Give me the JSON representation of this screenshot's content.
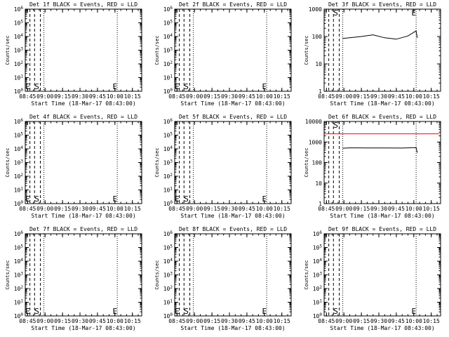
{
  "figure": {
    "background": "#ffffff",
    "axis_color": "#000000",
    "events_color": "#000000",
    "lld_color": "#ff0000"
  },
  "chart_data": [
    {
      "type": "line",
      "title": "Det 1f BLACK = Events, RED = LLD",
      "xlabel": "Start Time (18-Mar-17 08:43:00)",
      "ylabel": "Counts/sec",
      "scale": "log",
      "ytick_format": "exp",
      "ylim": [
        1,
        1000000
      ],
      "yticks": [
        1,
        10,
        100,
        1000,
        10000,
        100000,
        1000000
      ],
      "xticks": [
        "08:45",
        "09:00",
        "09:15",
        "09:30",
        "09:45",
        "10:00",
        "10:15"
      ],
      "markers": [
        {
          "label": "E",
          "x": "08:45"
        },
        {
          "label": "S",
          "x": "08:53"
        },
        {
          "label": "E",
          "x": "10:00"
        }
      ],
      "series": []
    },
    {
      "type": "line",
      "title": "Det 2f BLACK = Events, RED = LLD",
      "xlabel": "Start Time (18-Mar-17 08:43:00)",
      "ylabel": "Counts/sec",
      "scale": "log",
      "ytick_format": "exp",
      "ylim": [
        1,
        1000000
      ],
      "yticks": [
        1,
        10,
        100,
        1000,
        10000,
        100000,
        1000000
      ],
      "xticks": [
        "08:45",
        "09:00",
        "09:15",
        "09:30",
        "09:45",
        "10:00",
        "10:15"
      ],
      "markers": [
        {
          "label": "E",
          "x": "08:45"
        },
        {
          "label": "S",
          "x": "08:53"
        },
        {
          "label": "E",
          "x": "10:00"
        }
      ],
      "series": []
    },
    {
      "type": "line",
      "title": "Det 3f BLACK = Events, RED = LLD",
      "xlabel": "Start Time (18-Mar-17 08:43:00)",
      "ylabel": "Counts/sec",
      "scale": "log",
      "ytick_format": "plain",
      "ylim": [
        1,
        1000
      ],
      "yticks": [
        1,
        10,
        100,
        1000
      ],
      "xticks": [
        "08:45",
        "09:00",
        "09:15",
        "09:30",
        "09:45",
        "10:00",
        "10:15"
      ],
      "markers": [
        {
          "label": "S",
          "x": "08:53"
        },
        {
          "label": "E",
          "x": "10:00"
        }
      ],
      "series": [
        {
          "color": "events",
          "x": [
            "08:59",
            "09:05",
            "09:15",
            "09:25",
            "09:35",
            "09:45",
            "09:55",
            "10:02",
            "10:03"
          ],
          "y": [
            85,
            90,
            100,
            115,
            90,
            80,
            105,
            160,
            90
          ]
        }
      ]
    },
    {
      "type": "line",
      "title": "Det 4f BLACK = Events, RED = LLD",
      "xlabel": "Start Time (18-Mar-17 08:43:00)",
      "ylabel": "Counts/sec",
      "scale": "log",
      "ytick_format": "exp",
      "ylim": [
        1,
        1000000
      ],
      "yticks": [
        1,
        10,
        100,
        1000,
        10000,
        100000,
        1000000
      ],
      "xticks": [
        "08:45",
        "09:00",
        "09:15",
        "09:30",
        "09:45",
        "10:00",
        "10:15"
      ],
      "markers": [
        {
          "label": "E",
          "x": "08:45"
        },
        {
          "label": "S",
          "x": "08:53"
        },
        {
          "label": "E",
          "x": "10:00"
        }
      ],
      "series": []
    },
    {
      "type": "line",
      "title": "Det 5f BLACK = Events, RED = LLD",
      "xlabel": "Start Time (18-Mar-17 08:43:00)",
      "ylabel": "Counts/sec",
      "scale": "log",
      "ytick_format": "exp",
      "ylim": [
        1,
        1000000
      ],
      "yticks": [
        1,
        10,
        100,
        1000,
        10000,
        100000,
        1000000
      ],
      "xticks": [
        "08:45",
        "09:00",
        "09:15",
        "09:30",
        "09:45",
        "10:00",
        "10:15"
      ],
      "markers": [
        {
          "label": "E",
          "x": "08:45"
        },
        {
          "label": "S",
          "x": "08:53"
        },
        {
          "label": "E",
          "x": "10:00"
        }
      ],
      "series": []
    },
    {
      "type": "line",
      "title": "Det 6f BLACK = Events, RED = LLD",
      "xlabel": "Start Time (18-Mar-17 08:43:00)",
      "ylabel": "Counts/sec",
      "scale": "log",
      "ytick_format": "plain",
      "ylim": [
        1,
        10000
      ],
      "yticks": [
        1,
        10,
        100,
        1000,
        10000
      ],
      "xticks": [
        "08:45",
        "09:00",
        "09:15",
        "09:30",
        "09:45",
        "10:00",
        "10:15"
      ],
      "markers": [
        {
          "label": "S",
          "x": "08:53"
        }
      ],
      "series": [
        {
          "color": "lld",
          "x": [
            "08:43",
            "10:22"
          ],
          "y": [
            2500,
            2500
          ]
        },
        {
          "color": "events",
          "x": [
            "08:59",
            "09:05",
            "09:20",
            "09:35",
            "09:50",
            "10:02",
            "10:03"
          ],
          "y": [
            500,
            520,
            510,
            510,
            505,
            530,
            300
          ]
        }
      ]
    },
    {
      "type": "line",
      "title": "Det 7f BLACK = Events, RED = LLD",
      "xlabel": "Start Time (18-Mar-17 08:43:00)",
      "ylabel": "Counts/sec",
      "scale": "log",
      "ytick_format": "exp",
      "ylim": [
        1,
        1000000
      ],
      "yticks": [
        1,
        10,
        100,
        1000,
        10000,
        100000,
        1000000
      ],
      "xticks": [
        "08:45",
        "09:00",
        "09:15",
        "09:30",
        "09:45",
        "10:00",
        "10:15"
      ],
      "markers": [
        {
          "label": "E",
          "x": "08:45"
        },
        {
          "label": "S",
          "x": "08:53"
        },
        {
          "label": "E",
          "x": "10:00"
        }
      ],
      "series": []
    },
    {
      "type": "line",
      "title": "Det 8f BLACK = Events, RED = LLD",
      "xlabel": "Start Time (18-Mar-17 08:43:00)",
      "ylabel": "Counts/sec",
      "scale": "log",
      "ytick_format": "exp",
      "ylim": [
        1,
        1000000
      ],
      "yticks": [
        1,
        10,
        100,
        1000,
        10000,
        100000,
        1000000
      ],
      "xticks": [
        "08:45",
        "09:00",
        "09:15",
        "09:30",
        "09:45",
        "10:00",
        "10:15"
      ],
      "markers": [
        {
          "label": "E",
          "x": "08:45"
        },
        {
          "label": "S",
          "x": "08:53"
        },
        {
          "label": "E",
          "x": "10:00"
        }
      ],
      "series": []
    },
    {
      "type": "line",
      "title": "Det 9f BLACK = Events, RED = LLD",
      "xlabel": "Start Time (18-Mar-17 08:43:00)",
      "ylabel": "Counts/sec",
      "scale": "log",
      "ytick_format": "exp",
      "ylim": [
        1,
        1000000
      ],
      "yticks": [
        1,
        10,
        100,
        1000,
        10000,
        100000,
        1000000
      ],
      "xticks": [
        "08:45",
        "09:00",
        "09:15",
        "09:30",
        "09:45",
        "10:00",
        "10:15"
      ],
      "markers": [
        {
          "label": "S",
          "x": "08:53"
        },
        {
          "label": "E",
          "x": "10:00"
        }
      ],
      "series": []
    }
  ]
}
